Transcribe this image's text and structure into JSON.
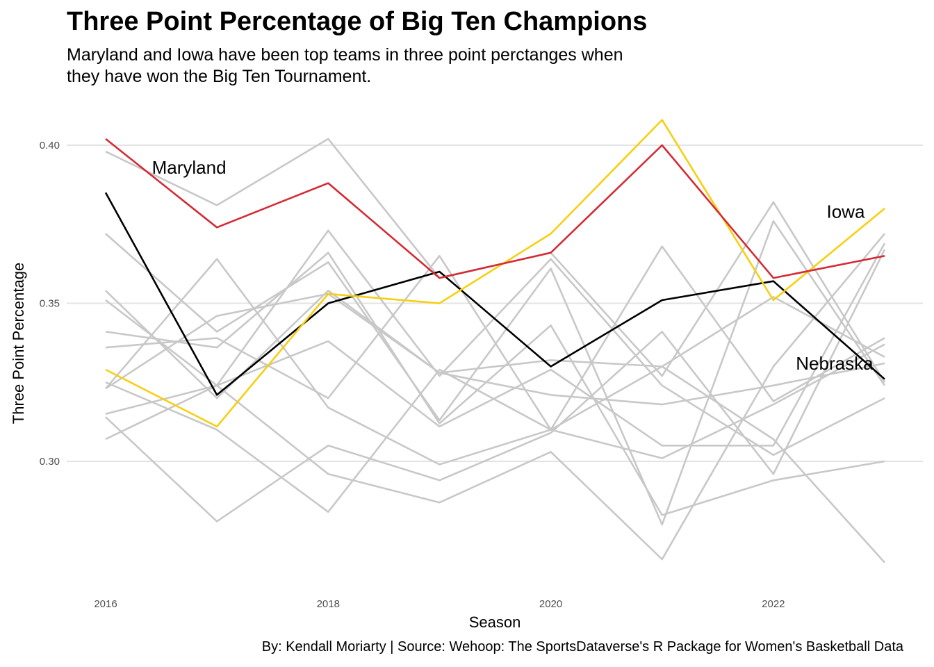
{
  "chart_data": {
    "type": "line",
    "title": "Three Point Percentage of Big Ten Champions",
    "subtitle": "Maryland and Iowa have been top teams in three point perctanges when they have won the Big Ten Tournament.",
    "caption": "By: Kendall Moriarty  |  Source: Wehoop: The SportsDataverse's R Package for Women's Basketball Data",
    "xlabel": "Season",
    "ylabel": "Three Point Percentage",
    "x": [
      2016,
      2017,
      2018,
      2019,
      2020,
      2021,
      2022,
      2023
    ],
    "xlim": [
      2016,
      2023
    ],
    "ylim": [
      0.26,
      0.42
    ],
    "x_ticks": [
      2016,
      2018,
      2020,
      2022
    ],
    "y_ticks": [
      0.3,
      0.35,
      0.4
    ],
    "x_tick_labels": [
      "2016",
      "2018",
      "2020",
      "2022"
    ],
    "y_tick_labels": [
      "0.30",
      "0.35",
      "0.40"
    ],
    "grid": "horizontal major",
    "colors": {
      "other": "#c8c8c8",
      "maryland": "#d42b35",
      "iowa": "#f7cf0f",
      "nebraska": "#000000",
      "grid": "#e3e3e3"
    },
    "background_series": [
      {
        "values": [
          0.398,
          0.381,
          0.402,
          0.358,
          0.366,
          0.327,
          0.382,
          0.325
        ]
      },
      {
        "values": [
          0.372,
          0.341,
          0.363,
          0.313,
          0.361,
          0.28,
          0.376,
          0.324
        ]
      },
      {
        "values": [
          0.354,
          0.32,
          0.354,
          0.328,
          0.332,
          0.33,
          0.352,
          0.333
        ]
      },
      {
        "values": [
          0.351,
          0.324,
          0.373,
          0.327,
          0.364,
          0.324,
          0.302,
          0.32
        ]
      },
      {
        "values": [
          0.341,
          0.336,
          0.366,
          0.312,
          0.343,
          0.283,
          0.294,
          0.3
        ]
      },
      {
        "values": [
          0.336,
          0.339,
          0.32,
          0.365,
          0.31,
          0.301,
          0.318,
          0.337
        ]
      },
      {
        "values": [
          0.323,
          0.364,
          0.317,
          0.299,
          0.31,
          0.368,
          0.319,
          0.339
        ]
      },
      {
        "values": [
          0.323,
          0.346,
          0.353,
          0.328,
          0.321,
          0.318,
          0.324,
          0.331
        ]
      },
      {
        "values": [
          0.315,
          0.324,
          0.338,
          0.311,
          0.329,
          0.305,
          0.305,
          0.369
        ]
      },
      {
        "values": [
          0.314,
          0.281,
          0.305,
          0.294,
          0.309,
          0.341,
          0.296,
          0.367
        ]
      },
      {
        "values": [
          0.307,
          0.324,
          0.296,
          0.287,
          0.303,
          0.269,
          0.33,
          0.372
        ]
      },
      {
        "values": [
          0.325,
          0.31,
          0.284,
          0.329,
          0.31,
          0.33,
          0.307,
          0.268
        ]
      }
    ],
    "series": [
      {
        "name": "Maryland",
        "values": [
          0.402,
          0.374,
          0.388,
          0.358,
          0.366,
          0.4,
          0.358,
          0.365
        ]
      },
      {
        "name": "Iowa",
        "values": [
          0.329,
          0.311,
          0.353,
          0.35,
          0.372,
          0.408,
          0.351,
          0.38
        ]
      },
      {
        "name": "Nebraska",
        "values": [
          0.385,
          0.321,
          0.35,
          0.36,
          0.33,
          0.351,
          0.357,
          0.326
        ]
      }
    ],
    "annotations": [
      {
        "text": "Maryland",
        "x": 2016.75,
        "y": 0.393
      },
      {
        "text": "Iowa",
        "x": 2022.65,
        "y": 0.379
      },
      {
        "text": "Nebraska",
        "x": 2022.55,
        "y": 0.331
      }
    ]
  }
}
